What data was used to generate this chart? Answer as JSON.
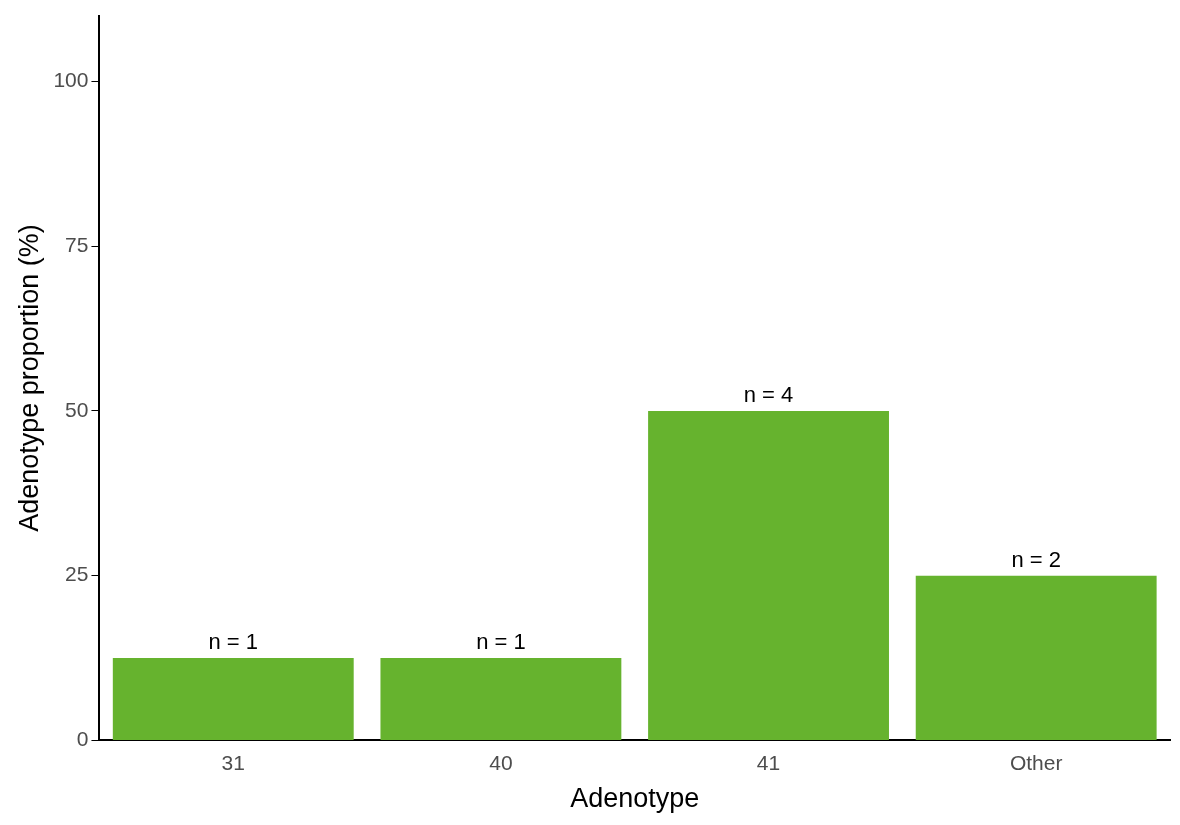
{
  "chart_data": {
    "type": "bar",
    "xlabel": "Adenotype",
    "ylabel": "Adenotype proportion (%)",
    "categories": [
      "31",
      "40",
      "41",
      "Other"
    ],
    "values": [
      12.5,
      12.5,
      50,
      25
    ],
    "annotations": [
      {
        "text": "n = 1",
        "x": "31",
        "y": 12.5
      },
      {
        "text": "n = 1",
        "x": "40",
        "y": 12.5
      },
      {
        "text": "n = 4",
        "x": "41",
        "y": 50
      },
      {
        "text": "n = 2",
        "x": "Other",
        "y": 25
      }
    ],
    "color": "#66b32e",
    "ylim": [
      0,
      110
    ],
    "yticks": [
      0,
      25,
      50,
      75,
      100
    ],
    "grid": false,
    "legend": false
  }
}
